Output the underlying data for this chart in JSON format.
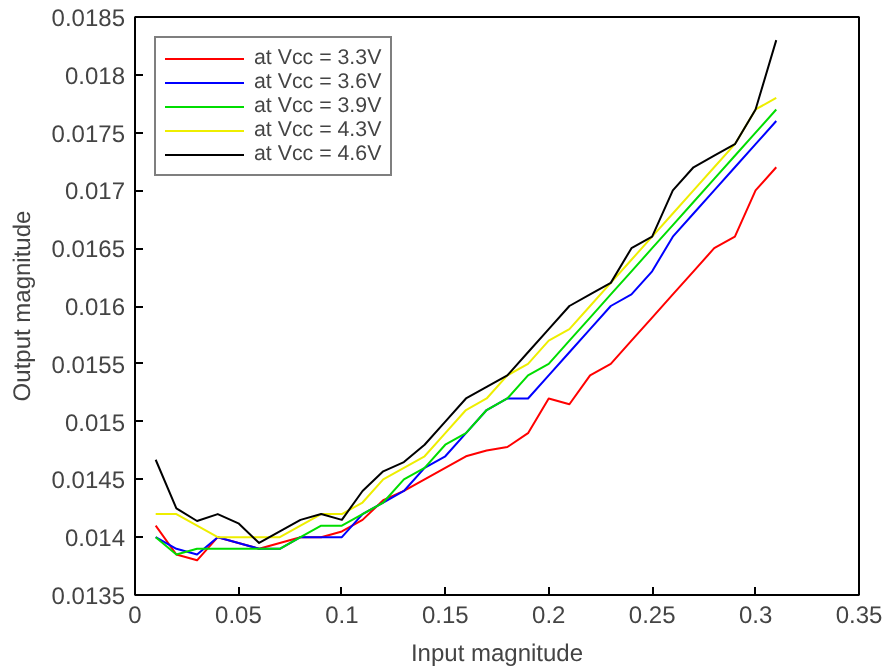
{
  "chart_data": {
    "type": "line",
    "xlabel": "Input magnitude",
    "ylabel": "Output magnitude",
    "x": [
      0.01,
      0.02,
      0.03,
      0.04,
      0.05,
      0.06,
      0.07,
      0.08,
      0.09,
      0.1,
      0.11,
      0.12,
      0.13,
      0.14,
      0.15,
      0.16,
      0.17,
      0.18,
      0.19,
      0.2,
      0.21,
      0.22,
      0.23,
      0.24,
      0.25,
      0.26,
      0.27,
      0.28,
      0.29,
      0.3,
      0.31
    ],
    "series": [
      {
        "name": "at Vcc = 3.3V",
        "color": "#ff0000",
        "values": [
          0.0141,
          0.01385,
          0.0138,
          0.014,
          0.01395,
          0.0139,
          0.01395,
          0.014,
          0.014,
          0.01405,
          0.01415,
          0.01432,
          0.0144,
          0.0145,
          0.0146,
          0.0147,
          0.01475,
          0.01478,
          0.0149,
          0.0152,
          0.01515,
          0.0154,
          0.0155,
          0.0157,
          0.0159,
          0.0161,
          0.0163,
          0.0165,
          0.0166,
          0.017,
          0.0172
        ]
      },
      {
        "name": "at Vcc = 3.6V",
        "color": "#0000ff",
        "values": [
          0.014,
          0.0139,
          0.01385,
          0.014,
          0.01395,
          0.0139,
          0.0139,
          0.014,
          0.014,
          0.014,
          0.0142,
          0.0143,
          0.0144,
          0.0146,
          0.0147,
          0.0149,
          0.0151,
          0.0152,
          0.0152,
          0.0154,
          0.0156,
          0.0158,
          0.016,
          0.0161,
          0.0163,
          0.0166,
          0.0168,
          0.017,
          0.0172,
          0.0174,
          0.0176
        ]
      },
      {
        "name": "at Vcc = 3.9V",
        "color": "#00dd00",
        "values": [
          0.014,
          0.01385,
          0.0139,
          0.0139,
          0.0139,
          0.0139,
          0.0139,
          0.014,
          0.0141,
          0.0141,
          0.0142,
          0.0143,
          0.0145,
          0.0146,
          0.0148,
          0.0149,
          0.0151,
          0.0152,
          0.0154,
          0.0155,
          0.0157,
          0.0159,
          0.0161,
          0.0163,
          0.0165,
          0.0167,
          0.0169,
          0.0171,
          0.0173,
          0.0175,
          0.0177
        ]
      },
      {
        "name": "at Vcc = 4.3V",
        "color": "#eeee00",
        "values": [
          0.0142,
          0.0142,
          0.0141,
          0.014,
          0.014,
          0.014,
          0.014,
          0.0141,
          0.0142,
          0.0142,
          0.0143,
          0.0145,
          0.0146,
          0.0147,
          0.0149,
          0.0151,
          0.0152,
          0.0154,
          0.0155,
          0.0157,
          0.0158,
          0.016,
          0.0162,
          0.0164,
          0.0166,
          0.0168,
          0.017,
          0.0172,
          0.0174,
          0.0177,
          0.0178
        ]
      },
      {
        "name": "at Vcc = 4.6V",
        "color": "#000000",
        "values": [
          0.01467,
          0.01425,
          0.01414,
          0.0142,
          0.01412,
          0.01395,
          0.01405,
          0.01415,
          0.0142,
          0.01415,
          0.0144,
          0.01457,
          0.01465,
          0.0148,
          0.015,
          0.0152,
          0.0153,
          0.0154,
          0.0156,
          0.0158,
          0.016,
          0.0161,
          0.0162,
          0.0165,
          0.0166,
          0.017,
          0.0172,
          0.0173,
          0.0174,
          0.0177,
          0.0183
        ]
      }
    ],
    "xlim": [
      0,
      0.35
    ],
    "xticks": [
      0,
      0.05,
      0.1,
      0.15,
      0.2,
      0.25,
      0.3,
      0.35
    ],
    "ylim": [
      0.0135,
      0.0185
    ],
    "yticks": [
      0.0135,
      0.014,
      0.0145,
      0.015,
      0.0155,
      0.016,
      0.0165,
      0.017,
      0.0175,
      0.018,
      0.0185
    ],
    "grid": false,
    "legend": "top left",
    "line_style": "solid",
    "marker": "none"
  }
}
